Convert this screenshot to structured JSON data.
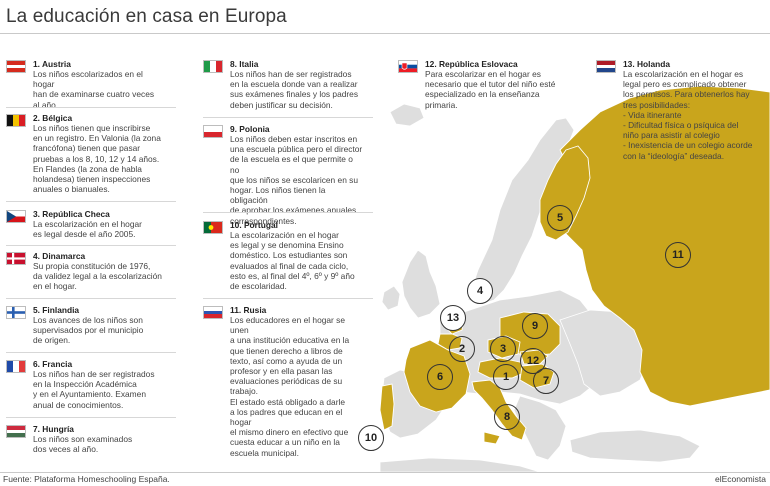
{
  "title": "La educación en casa en Europa",
  "footer": {
    "source": "Fuente: Plataforma Homeschooling España.",
    "brand": "elEconomista"
  },
  "colors": {
    "highlight": "#c9a51c",
    "land": "#dedede",
    "sea": "#ffffff"
  },
  "entries": [
    {
      "num": "1",
      "country": "1. Austria",
      "flag": "austria",
      "desc": "Los niños escolarizados en el hogar\nhan de examinarse cuatro veces\nal año."
    },
    {
      "num": "2",
      "country": "2. Bélgica",
      "flag": "belgium",
      "desc": "Los niños tienen que inscribirse\nen un registro. En Valonia (la zona\nfrancófona) tienen que pasar\npruebas a los 8, 10, 12 y 14 años.\nEn Flandes (la zona de habla\nholandesa) tienen inspecciones\nanuales o bianuales."
    },
    {
      "num": "3",
      "country": "3. República Checa",
      "flag": "czech",
      "desc": "La escolarización en el hogar\nes legal desde el año 2005."
    },
    {
      "num": "4",
      "country": "4. Dinamarca",
      "flag": "denmark",
      "desc": "Su propia constitución de 1976,\nda validez legal a la escolarización\nen el hogar."
    },
    {
      "num": "5",
      "country": "5. Finlandia",
      "flag": "finland",
      "desc": "Los avances de los niños son\nsupervisados por el municipio\nde origen."
    },
    {
      "num": "6",
      "country": "6. Francia",
      "flag": "france",
      "desc": "Los niños han de ser registrados\nen la Inspección Académica\ny en el Ayuntamiento. Examen\nanual de conocimientos."
    },
    {
      "num": "7",
      "country": "7. Hungría",
      "flag": "hungary",
      "desc": "Los niños son examinados\ndos veces al año."
    },
    {
      "num": "8",
      "country": "8. Italia",
      "flag": "italy",
      "desc": "Los niños han de ser registrados\nen la escuela donde van a realizar\nsus exámenes finales y los padres\ndeben justificar su decisión."
    },
    {
      "num": "9",
      "country": "9. Polonia",
      "flag": "poland",
      "desc": "Los niños deben estar inscritos en\nuna escuela pública pero el director\nde la escuela es el que permite o no\nque los niños se escolaricen en su\nhogar. Los niños tienen la obligación\nde aprobar los exámenes anuales\ncorrespondientes."
    },
    {
      "num": "10",
      "country": "10. Portugal",
      "flag": "portugal",
      "desc": "La escolarización en el hogar\nes legal y se denomina Ensino\ndoméstico. Los estudiantes son\nevaluados al final de cada ciclo,\nesto es, al final del 4º, 6º y 9º año\nde escolaridad."
    },
    {
      "num": "11",
      "country": "11. Rusia",
      "flag": "russia",
      "desc": "Los educadores en el hogar se unen\na una institución educativa en la\nque tienen derecho a libros de\ntexto, así como a ayuda de un\nprofesor y en ella pasan las\nevaluaciones periódicas de su\ntrabajo.\nEl estado está obligado a darle\na los padres que educan en el hogar\nel mismo dinero en efectivo que\ncuesta educar a un niño en la\nescuela municipal."
    },
    {
      "num": "12",
      "country": "12. República Eslovaca",
      "flag": "slovakia",
      "desc": "Para escolarizar en el hogar es\nnecesario que el tutor del niño esté\nespecializado en la enseñanza\nprimaria."
    },
    {
      "num": "13",
      "country": "13. Holanda",
      "flag": "netherlands",
      "desc": "La escolarización en el hogar es\nlegal pero es complicado obtener\nlos permisos. Para obtenerlos hay\ntres posibilidades:\n- Vida itinerante\n- Dificultad física o psíquica del\nniño para asistir al colegio\n- Inexistencia de un colegio acorde\ncon la “ideología” deseada."
    }
  ]
}
